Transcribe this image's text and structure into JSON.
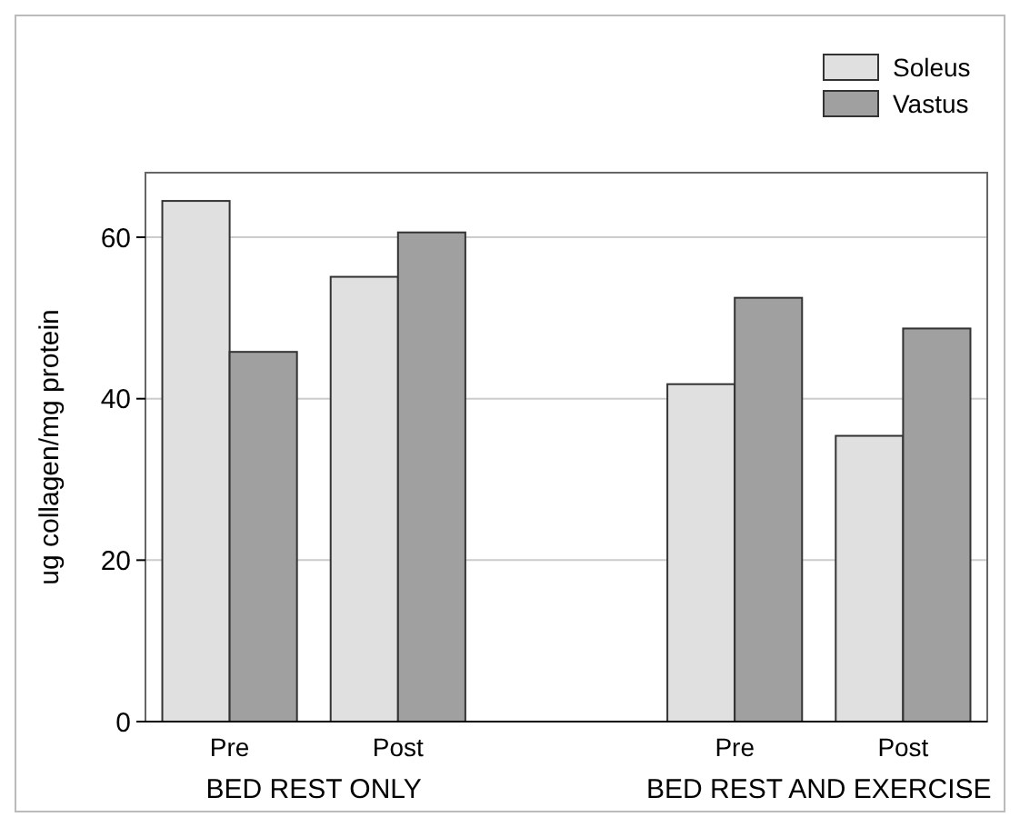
{
  "chart_data": {
    "type": "bar",
    "ylabel": "ug collagen/mg protein",
    "categories": [
      "Pre",
      "Post",
      null,
      "Pre",
      "Post"
    ],
    "series": [
      {
        "name": "Soleus",
        "color": "#e0e0e0",
        "values": [
          64.5,
          55.1,
          null,
          41.8,
          35.4
        ]
      },
      {
        "name": "Vastus",
        "color": "#a0a0a0",
        "values": [
          45.8,
          60.6,
          null,
          52.5,
          48.7
        ]
      }
    ],
    "annotations": [
      "BED REST ONLY",
      "BED REST AND EXERCISE"
    ],
    "ylim": [
      0,
      68
    ],
    "yticks": [
      0,
      20,
      40,
      60
    ],
    "grid": "y",
    "legend": "top right"
  }
}
